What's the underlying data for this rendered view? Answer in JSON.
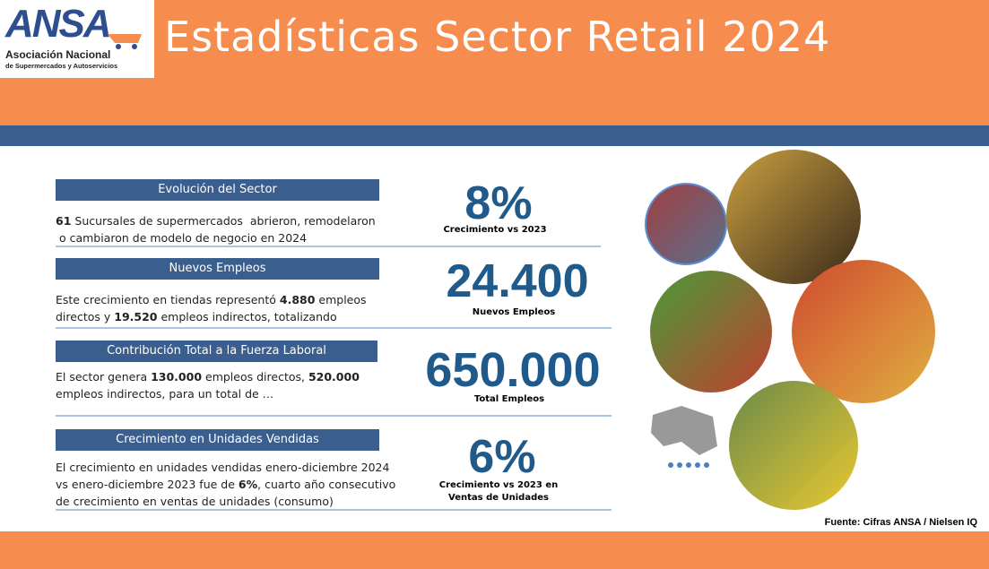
{
  "logo": {
    "acronym": "ANSA",
    "name": "Asociación Nacional",
    "subtitle": "de Supermercados y Autoservicios"
  },
  "header": {
    "title": "Estadísticas Sector Retail 2024"
  },
  "sections": [
    {
      "heading": "Evolución del Sector",
      "description": [
        [
          {
            "text": "61",
            "bold": true
          },
          {
            "text": " Sucursales de supermercados  abrieron, remodelaron"
          }
        ],
        [
          {
            "text": " o cambiaron de modelo de negocio en 2024"
          }
        ]
      ],
      "stat": "8%",
      "stat_caption": [
        "Crecimiento vs 2023"
      ]
    },
    {
      "heading": "Nuevos Empleos",
      "description": [
        [
          {
            "text": "Este crecimiento en tiendas representó "
          },
          {
            "text": "4.880",
            "bold": true
          },
          {
            "text": " empleos"
          }
        ],
        [
          {
            "text": "directos y "
          },
          {
            "text": "19.520",
            "bold": true
          },
          {
            "text": " empleos indirectos, totalizando"
          }
        ]
      ],
      "stat": "24.400",
      "stat_caption": [
        "Nuevos Empleos"
      ]
    },
    {
      "heading": "Contribución Total a la Fuerza Laboral",
      "description": [
        [
          {
            "text": "El sector genera "
          },
          {
            "text": "130.000",
            "bold": true
          },
          {
            "text": " empleos directos, "
          },
          {
            "text": "520.000",
            "bold": true
          }
        ],
        [
          {
            "text": "empleos indirectos, para un total de …"
          }
        ]
      ],
      "stat": "650.000",
      "stat_caption": [
        "Total  Empleos"
      ]
    },
    {
      "heading": "Crecimiento en Unidades Vendidas",
      "description": [
        [
          {
            "text": "El crecimiento en unidades vendidas enero-diciembre 2024"
          }
        ],
        [
          {
            "text": "vs enero-diciembre 2023 fue de "
          },
          {
            "text": "6%",
            "bold": true
          },
          {
            "text": ", cuarto año consecutivo"
          }
        ],
        [
          {
            "text": "de crecimiento en ventas de unidades (consumo)"
          }
        ]
      ],
      "stat": "6%",
      "stat_caption": [
        "Crecimiento vs 2023  en",
        "Ventas de Unidades"
      ]
    }
  ],
  "footer": {
    "source": "Fuente: Cifras ANSA / Nielsen IQ"
  }
}
